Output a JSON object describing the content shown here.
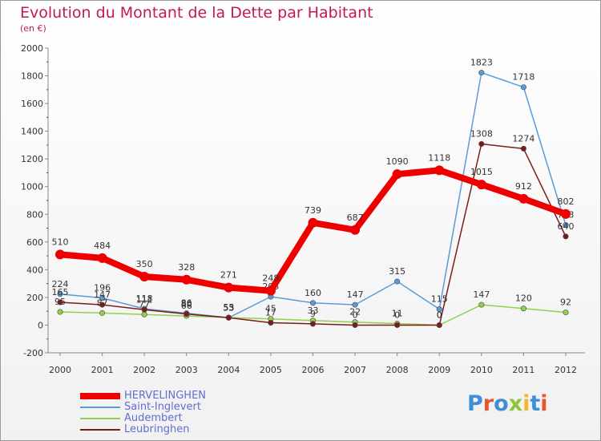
{
  "title": "Evolution du Montant de la Dette par Habitant",
  "subtitle": "(en €)",
  "logo": "Proxiti",
  "chart_data": {
    "type": "line",
    "title": "Evolution du Montant de la Dette par Habitant",
    "subtitle": "(en €)",
    "xlabel": "",
    "ylabel": "",
    "x": [
      "2000",
      "2001",
      "2002",
      "2003",
      "2004",
      "2005",
      "2006",
      "2007",
      "2008",
      "2009",
      "2010",
      "2011",
      "2012"
    ],
    "y_ticks": [
      "-200",
      "0",
      "200",
      "400",
      "600",
      "800",
      "1000",
      "1200",
      "1400",
      "1600",
      "1800",
      "2000"
    ],
    "ylim": [
      -200,
      2000
    ],
    "grid": false,
    "legend": "bottom-left",
    "series": [
      {
        "name": "HERVELINGHEN",
        "color": "#ee0000",
        "values": [
          510,
          484,
          350,
          328,
          271,
          248,
          739,
          687,
          1090,
          1118,
          1015,
          912,
          802
        ]
      },
      {
        "name": "Saint-Inglevert",
        "color": "#5b9bd5",
        "values": [
          224,
          196,
          118,
          86,
          53,
          205,
          160,
          147,
          315,
          115,
          1823,
          1718,
          723
        ]
      },
      {
        "name": "Audembert",
        "color": "#92d050",
        "values": [
          95,
          87,
          77,
          66,
          55,
          45,
          33,
          22,
          11,
          0,
          147,
          120,
          92
        ]
      },
      {
        "name": "Leubringhen",
        "color": "#7b1c1c",
        "values": [
          165,
          147,
          111,
          80,
          53,
          17,
          9,
          0,
          0,
          0,
          1308,
          1274,
          640
        ]
      }
    ]
  }
}
